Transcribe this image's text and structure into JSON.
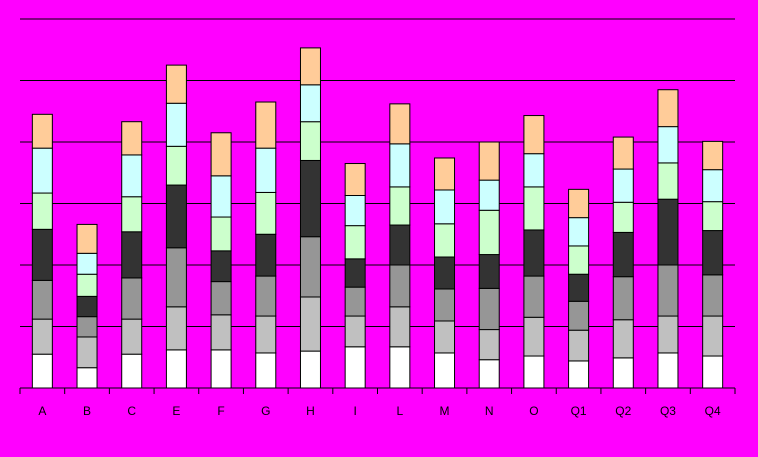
{
  "chart_data": {
    "type": "stacked_bar",
    "categories": [
      "A",
      "B",
      "C",
      "E",
      "F",
      "G",
      "H",
      "I",
      "L",
      "M",
      "N",
      "O",
      "Q1",
      "Q2",
      "Q3",
      "Q4"
    ],
    "series": [
      {
        "color": "#ffffff",
        "values": [
          0.55,
          0.33,
          0.55,
          0.62,
          0.62,
          0.57,
          0.6,
          0.67,
          0.67,
          0.57,
          0.46,
          0.52,
          0.44,
          0.49,
          0.57,
          0.52
        ]
      },
      {
        "color": "#c0c0c0",
        "values": [
          0.57,
          0.5,
          0.57,
          0.7,
          0.57,
          0.6,
          0.88,
          0.5,
          0.65,
          0.52,
          0.49,
          0.63,
          0.5,
          0.62,
          0.6,
          0.65
        ]
      },
      {
        "color": "#969696",
        "values": [
          0.63,
          0.33,
          0.67,
          0.96,
          0.54,
          0.65,
          0.98,
          0.47,
          0.68,
          0.52,
          0.67,
          0.67,
          0.47,
          0.7,
          0.83,
          0.67
        ]
      },
      {
        "color": "#333333",
        "values": [
          0.83,
          0.33,
          0.75,
          1.02,
          0.5,
          0.68,
          1.24,
          0.46,
          0.65,
          0.52,
          0.55,
          0.75,
          0.44,
          0.72,
          1.07,
          0.72
        ]
      },
      {
        "color": "#ccffcc",
        "values": [
          0.59,
          0.36,
          0.57,
          0.63,
          0.55,
          0.68,
          0.63,
          0.54,
          0.62,
          0.54,
          0.72,
          0.7,
          0.46,
          0.49,
          0.59,
          0.47
        ]
      },
      {
        "color": "#ccffff",
        "values": [
          0.73,
          0.34,
          0.68,
          0.7,
          0.67,
          0.72,
          0.6,
          0.49,
          0.7,
          0.55,
          0.49,
          0.54,
          0.46,
          0.54,
          0.59,
          0.52
        ]
      },
      {
        "color": "#ffcc99",
        "values": [
          0.55,
          0.47,
          0.54,
          0.62,
          0.7,
          0.75,
          0.6,
          0.52,
          0.65,
          0.52,
          0.62,
          0.62,
          0.46,
          0.52,
          0.6,
          0.46
        ]
      }
    ],
    "ylim": [
      0,
      6
    ],
    "yticks": [
      0,
      1,
      2,
      3,
      4,
      5,
      6
    ],
    "grid": true
  }
}
